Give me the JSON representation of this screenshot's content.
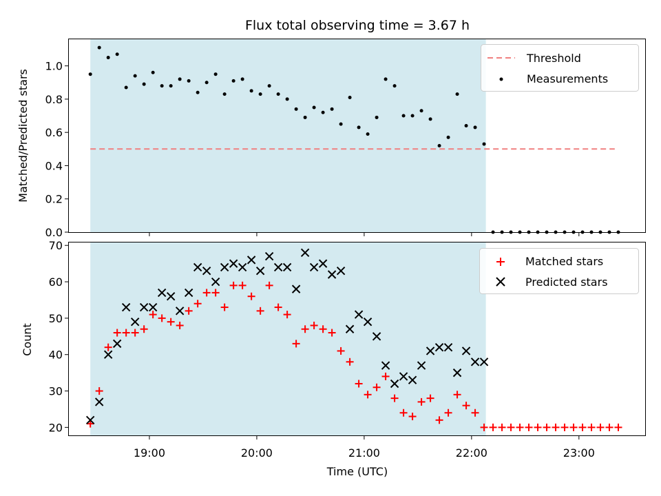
{
  "chart_data": [
    {
      "type": "scatter",
      "title": "Flux total observing time = 3.67 h",
      "ylabel": "Matched/Predicted stars",
      "xlabel": "",
      "ylim": [
        0,
        1.16
      ],
      "yticks": [
        "0.0",
        "0.2",
        "0.4",
        "0.6",
        "0.8",
        "1.0"
      ],
      "xticks": [
        "19:00",
        "20:00",
        "21:00",
        "22:00",
        "23:00"
      ],
      "xrange": [
        "18:15",
        "23:37"
      ],
      "grid": false,
      "legend_position": "top-right",
      "shaded_interval": {
        "start": "18:27",
        "end": "22:08",
        "color": "#d4eaf0"
      },
      "threshold": {
        "name": "Threshold",
        "y": 0.5,
        "x_start": "18:27",
        "x_end": "23:20",
        "color": "#f08080",
        "style": "dashed"
      },
      "series": [
        {
          "name": "Measurements",
          "color": "#000000",
          "marker": "dot",
          "x": [
            "18:27",
            "18:32",
            "18:37",
            "18:42",
            "18:47",
            "18:52",
            "18:57",
            "19:02",
            "19:07",
            "19:12",
            "19:17",
            "19:22",
            "19:27",
            "19:32",
            "19:37",
            "19:42",
            "19:47",
            "19:52",
            "19:57",
            "20:02",
            "20:07",
            "20:12",
            "20:17",
            "20:22",
            "20:27",
            "20:32",
            "20:37",
            "20:42",
            "20:47",
            "20:52",
            "20:57",
            "21:02",
            "21:07",
            "21:12",
            "21:17",
            "21:22",
            "21:27",
            "21:32",
            "21:37",
            "21:42",
            "21:47",
            "21:52",
            "21:57",
            "22:02",
            "22:07",
            "22:12",
            "22:17",
            "22:22",
            "22:27",
            "22:32",
            "22:37",
            "22:42",
            "22:47",
            "22:52",
            "22:57",
            "23:02",
            "23:07",
            "23:12",
            "23:17",
            "23:22"
          ],
          "values": [
            0.95,
            1.11,
            1.05,
            1.07,
            0.87,
            0.94,
            0.89,
            0.96,
            0.88,
            0.88,
            0.92,
            0.91,
            0.84,
            0.9,
            0.95,
            0.83,
            0.91,
            0.92,
            0.85,
            0.83,
            0.88,
            0.83,
            0.8,
            0.74,
            0.69,
            0.75,
            0.72,
            0.74,
            0.65,
            0.81,
            0.63,
            0.59,
            0.69,
            0.92,
            0.88,
            0.7,
            0.7,
            0.73,
            0.68,
            0.52,
            0.57,
            0.83,
            0.64,
            0.63,
            0.53,
            0.0,
            0.0,
            0.0,
            0.0,
            0.0,
            0.0,
            0.0,
            0.0,
            0.0,
            0.0,
            0.0,
            0.0,
            0.0,
            0.0,
            0.0
          ]
        }
      ]
    },
    {
      "type": "scatter",
      "title": "",
      "xlabel": "Time (UTC)",
      "ylabel": "Count",
      "ylim": [
        17.8,
        70.8
      ],
      "yticks": [
        "20",
        "30",
        "40",
        "50",
        "60",
        "70"
      ],
      "xticks": [
        "19:00",
        "20:00",
        "21:00",
        "22:00",
        "23:00"
      ],
      "xrange": [
        "18:15",
        "23:37"
      ],
      "grid": false,
      "legend_position": "top-right",
      "shaded_interval": {
        "start": "18:27",
        "end": "22:08",
        "color": "#d4eaf0"
      },
      "series": [
        {
          "name": "Matched stars",
          "color": "#ff0000",
          "marker": "plus",
          "x": [
            "18:27",
            "18:32",
            "18:37",
            "18:42",
            "18:47",
            "18:52",
            "18:57",
            "19:02",
            "19:07",
            "19:12",
            "19:17",
            "19:22",
            "19:27",
            "19:32",
            "19:37",
            "19:42",
            "19:47",
            "19:52",
            "19:57",
            "20:02",
            "20:07",
            "20:12",
            "20:17",
            "20:22",
            "20:27",
            "20:32",
            "20:37",
            "20:42",
            "20:47",
            "20:52",
            "20:57",
            "21:02",
            "21:07",
            "21:12",
            "21:17",
            "21:22",
            "21:27",
            "21:32",
            "21:37",
            "21:42",
            "21:47",
            "21:52",
            "21:57",
            "22:02",
            "22:07",
            "22:12",
            "22:17",
            "22:22",
            "22:27",
            "22:32",
            "22:37",
            "22:42",
            "22:47",
            "22:52",
            "22:57",
            "23:02",
            "23:07",
            "23:12",
            "23:17",
            "23:22"
          ],
          "values": [
            21,
            30,
            42,
            46,
            46,
            46,
            47,
            51,
            50,
            49,
            48,
            52,
            54,
            57,
            57,
            53,
            59,
            59,
            56,
            52,
            59,
            53,
            51,
            43,
            47,
            48,
            47,
            46,
            41,
            38,
            32,
            29,
            31,
            34,
            28,
            24,
            23,
            27,
            28,
            22,
            24,
            29,
            26,
            24,
            20,
            20,
            20,
            20,
            20,
            20,
            20,
            20,
            20,
            20,
            20,
            20,
            20,
            20,
            20,
            20
          ]
        },
        {
          "name": "Predicted stars",
          "color": "#000000",
          "marker": "x",
          "x": [
            "18:27",
            "18:32",
            "18:37",
            "18:42",
            "18:47",
            "18:52",
            "18:57",
            "19:02",
            "19:07",
            "19:12",
            "19:17",
            "19:22",
            "19:27",
            "19:32",
            "19:37",
            "19:42",
            "19:47",
            "19:52",
            "19:57",
            "20:02",
            "20:07",
            "20:12",
            "20:17",
            "20:22",
            "20:27",
            "20:32",
            "20:37",
            "20:42",
            "20:47",
            "20:52",
            "20:57",
            "21:02",
            "21:07",
            "21:12",
            "21:17",
            "21:22",
            "21:27",
            "21:32",
            "21:37",
            "21:42",
            "21:47",
            "21:52",
            "21:57",
            "22:02",
            "22:07"
          ],
          "values": [
            22,
            27,
            40,
            43,
            53,
            49,
            53,
            53,
            57,
            56,
            52,
            57,
            64,
            63,
            60,
            64,
            65,
            64,
            66,
            63,
            67,
            64,
            64,
            58,
            68,
            64,
            65,
            62,
            63,
            47,
            51,
            49,
            45,
            37,
            32,
            34,
            33,
            37,
            41,
            42,
            42,
            35,
            41,
            38,
            38
          ]
        }
      ]
    }
  ]
}
